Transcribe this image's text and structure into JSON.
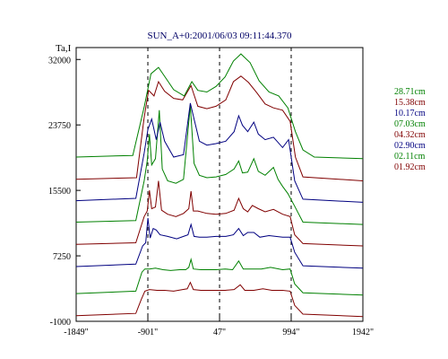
{
  "chart_data": {
    "type": "line",
    "title": "SUN_A+0:2001/06/03 09:11:44.370",
    "ylabel": "Ta,I",
    "xlabel": "",
    "x_range": [
      -1849,
      1942
    ],
    "y_range": [
      -1000,
      33500
    ],
    "x_ticks": [
      "-1849\"",
      "-901\"",
      "47\"",
      "994\"",
      "1942\""
    ],
    "x_tick_values": [
      -1849,
      -901,
      47,
      994,
      1942
    ],
    "y_ticks": [
      "32000",
      "23750",
      "15500",
      "7250",
      "-1000"
    ],
    "y_tick_values": [
      32000,
      23750,
      15500,
      7250,
      -1000
    ],
    "dashed_lines_x": [
      -901,
      47,
      994
    ],
    "legend_position": "right",
    "series": [
      {
        "name": "28.71cm",
        "color": "#008000",
        "points": [
          [
            -1849,
            19700
          ],
          [
            -1100,
            19900
          ],
          [
            -950,
            26000
          ],
          [
            -860,
            30200
          ],
          [
            -760,
            31000
          ],
          [
            -660,
            29600
          ],
          [
            -560,
            28200
          ],
          [
            -420,
            27400
          ],
          [
            -320,
            29200
          ],
          [
            -240,
            28100
          ],
          [
            -120,
            27900
          ],
          [
            0,
            28600
          ],
          [
            120,
            29800
          ],
          [
            230,
            31800
          ],
          [
            330,
            32700
          ],
          [
            450,
            31600
          ],
          [
            570,
            29300
          ],
          [
            700,
            27900
          ],
          [
            830,
            27400
          ],
          [
            950,
            25900
          ],
          [
            1050,
            22900
          ],
          [
            1150,
            20600
          ],
          [
            1300,
            19700
          ],
          [
            1942,
            19500
          ]
        ]
      },
      {
        "name": "15.38cm",
        "color": "#800000",
        "points": [
          [
            -1849,
            16900
          ],
          [
            -1050,
            17100
          ],
          [
            -950,
            24700
          ],
          [
            -890,
            28100
          ],
          [
            -820,
            27400
          ],
          [
            -760,
            29200
          ],
          [
            -680,
            28000
          ],
          [
            -560,
            27100
          ],
          [
            -440,
            26900
          ],
          [
            -330,
            28700
          ],
          [
            -240,
            26100
          ],
          [
            -120,
            25800
          ],
          [
            0,
            26100
          ],
          [
            130,
            26900
          ],
          [
            230,
            29200
          ],
          [
            330,
            29900
          ],
          [
            430,
            29100
          ],
          [
            540,
            27800
          ],
          [
            650,
            26400
          ],
          [
            760,
            25900
          ],
          [
            880,
            25600
          ],
          [
            980,
            24200
          ],
          [
            1050,
            19700
          ],
          [
            1150,
            17200
          ],
          [
            1942,
            16700
          ]
        ]
      },
      {
        "name": "10.17cm",
        "color": "#000080",
        "points": [
          [
            -1849,
            14200
          ],
          [
            -1060,
            14500
          ],
          [
            -950,
            20200
          ],
          [
            -900,
            23200
          ],
          [
            -850,
            24500
          ],
          [
            -790,
            21900
          ],
          [
            -740,
            24100
          ],
          [
            -680,
            21700
          ],
          [
            -560,
            19700
          ],
          [
            -430,
            20000
          ],
          [
            -340,
            26500
          ],
          [
            -290,
            24500
          ],
          [
            -220,
            21700
          ],
          [
            -120,
            21200
          ],
          [
            0,
            21400
          ],
          [
            130,
            21700
          ],
          [
            240,
            22900
          ],
          [
            300,
            24900
          ],
          [
            350,
            23700
          ],
          [
            420,
            22900
          ],
          [
            500,
            24100
          ],
          [
            560,
            22600
          ],
          [
            650,
            21900
          ],
          [
            760,
            22200
          ],
          [
            880,
            20900
          ],
          [
            960,
            21900
          ],
          [
            1040,
            16700
          ],
          [
            1150,
            14400
          ],
          [
            1942,
            14000
          ]
        ]
      },
      {
        "name": "07.03cm",
        "color": "#008000",
        "points": [
          [
            -1849,
            11500
          ],
          [
            -1060,
            11700
          ],
          [
            -950,
            16700
          ],
          [
            -910,
            19200
          ],
          [
            -880,
            22600
          ],
          [
            -850,
            18700
          ],
          [
            -800,
            19500
          ],
          [
            -750,
            25600
          ],
          [
            -710,
            18200
          ],
          [
            -640,
            16700
          ],
          [
            -530,
            16400
          ],
          [
            -430,
            16900
          ],
          [
            -340,
            26200
          ],
          [
            -290,
            18900
          ],
          [
            -220,
            17400
          ],
          [
            -120,
            17100
          ],
          [
            0,
            17200
          ],
          [
            130,
            17500
          ],
          [
            240,
            18200
          ],
          [
            300,
            19200
          ],
          [
            350,
            17700
          ],
          [
            420,
            17800
          ],
          [
            500,
            19500
          ],
          [
            560,
            17900
          ],
          [
            650,
            17400
          ],
          [
            760,
            18400
          ],
          [
            820,
            16900
          ],
          [
            880,
            16000
          ],
          [
            950,
            15100
          ],
          [
            1040,
            13500
          ],
          [
            1150,
            11500
          ],
          [
            1942,
            11200
          ]
        ]
      },
      {
        "name": "04.32cm",
        "color": "#800000",
        "points": [
          [
            -1849,
            8700
          ],
          [
            -1060,
            8900
          ],
          [
            -950,
            12200
          ],
          [
            -910,
            12900
          ],
          [
            -880,
            15500
          ],
          [
            -850,
            13200
          ],
          [
            -800,
            13400
          ],
          [
            -760,
            16700
          ],
          [
            -720,
            13000
          ],
          [
            -640,
            12500
          ],
          [
            -530,
            12200
          ],
          [
            -430,
            12600
          ],
          [
            -360,
            13200
          ],
          [
            -330,
            15400
          ],
          [
            -300,
            12900
          ],
          [
            -240,
            12900
          ],
          [
            -120,
            12600
          ],
          [
            0,
            12500
          ],
          [
            130,
            12600
          ],
          [
            240,
            13000
          ],
          [
            300,
            14500
          ],
          [
            360,
            13200
          ],
          [
            420,
            12800
          ],
          [
            480,
            13600
          ],
          [
            560,
            13200
          ],
          [
            650,
            12800
          ],
          [
            760,
            13100
          ],
          [
            880,
            12500
          ],
          [
            980,
            12200
          ],
          [
            1040,
            9900
          ],
          [
            1150,
            8800
          ],
          [
            1942,
            8500
          ]
        ]
      },
      {
        "name": "02.90cm",
        "color": "#000080",
        "points": [
          [
            -1849,
            5900
          ],
          [
            -1060,
            6200
          ],
          [
            -970,
            8500
          ],
          [
            -930,
            8900
          ],
          [
            -900,
            12000
          ],
          [
            -870,
            9500
          ],
          [
            -830,
            10700
          ],
          [
            -790,
            10500
          ],
          [
            -740,
            9900
          ],
          [
            -640,
            9700
          ],
          [
            -520,
            9400
          ],
          [
            -430,
            9700
          ],
          [
            -370,
            9900
          ],
          [
            -330,
            11200
          ],
          [
            -290,
            9700
          ],
          [
            -220,
            9600
          ],
          [
            -120,
            9600
          ],
          [
            0,
            9700
          ],
          [
            130,
            9700
          ],
          [
            230,
            9900
          ],
          [
            300,
            10700
          ],
          [
            360,
            9800
          ],
          [
            420,
            10200
          ],
          [
            500,
            10200
          ],
          [
            580,
            9600
          ],
          [
            700,
            9800
          ],
          [
            880,
            9600
          ],
          [
            980,
            9600
          ],
          [
            1040,
            7700
          ],
          [
            1150,
            6000
          ],
          [
            1942,
            5700
          ]
        ]
      },
      {
        "name": "02.11cm",
        "color": "#008000",
        "points": [
          [
            -1849,
            2500
          ],
          [
            -1060,
            2800
          ],
          [
            -980,
            5200
          ],
          [
            -940,
            5600
          ],
          [
            -880,
            5600
          ],
          [
            -800,
            5700
          ],
          [
            -700,
            5500
          ],
          [
            -600,
            5400
          ],
          [
            -480,
            5500
          ],
          [
            -400,
            5500
          ],
          [
            -360,
            5800
          ],
          [
            -330,
            6800
          ],
          [
            -300,
            5600
          ],
          [
            -200,
            5500
          ],
          [
            -100,
            5500
          ],
          [
            0,
            5500
          ],
          [
            120,
            5600
          ],
          [
            220,
            5500
          ],
          [
            300,
            6600
          ],
          [
            360,
            5600
          ],
          [
            480,
            5600
          ],
          [
            600,
            5600
          ],
          [
            720,
            5800
          ],
          [
            880,
            5500
          ],
          [
            980,
            5600
          ],
          [
            1040,
            3700
          ],
          [
            1150,
            2600
          ],
          [
            1942,
            2300
          ]
        ]
      },
      {
        "name": "01.92cm",
        "color": "#800000",
        "points": [
          [
            -1849,
            -300
          ],
          [
            -1060,
            0
          ],
          [
            -990,
            1700
          ],
          [
            -940,
            2800
          ],
          [
            -880,
            3000
          ],
          [
            -780,
            2900
          ],
          [
            -680,
            2900
          ],
          [
            -560,
            2800
          ],
          [
            -440,
            3000
          ],
          [
            -380,
            3100
          ],
          [
            -340,
            3900
          ],
          [
            -300,
            3000
          ],
          [
            -200,
            2900
          ],
          [
            -100,
            2900
          ],
          [
            0,
            2900
          ],
          [
            120,
            2900
          ],
          [
            240,
            3000
          ],
          [
            320,
            3600
          ],
          [
            380,
            2900
          ],
          [
            500,
            2900
          ],
          [
            620,
            3100
          ],
          [
            740,
            2900
          ],
          [
            880,
            2900
          ],
          [
            980,
            2800
          ],
          [
            1040,
            1000
          ],
          [
            1150,
            -100
          ],
          [
            1942,
            -400
          ]
        ]
      }
    ]
  }
}
